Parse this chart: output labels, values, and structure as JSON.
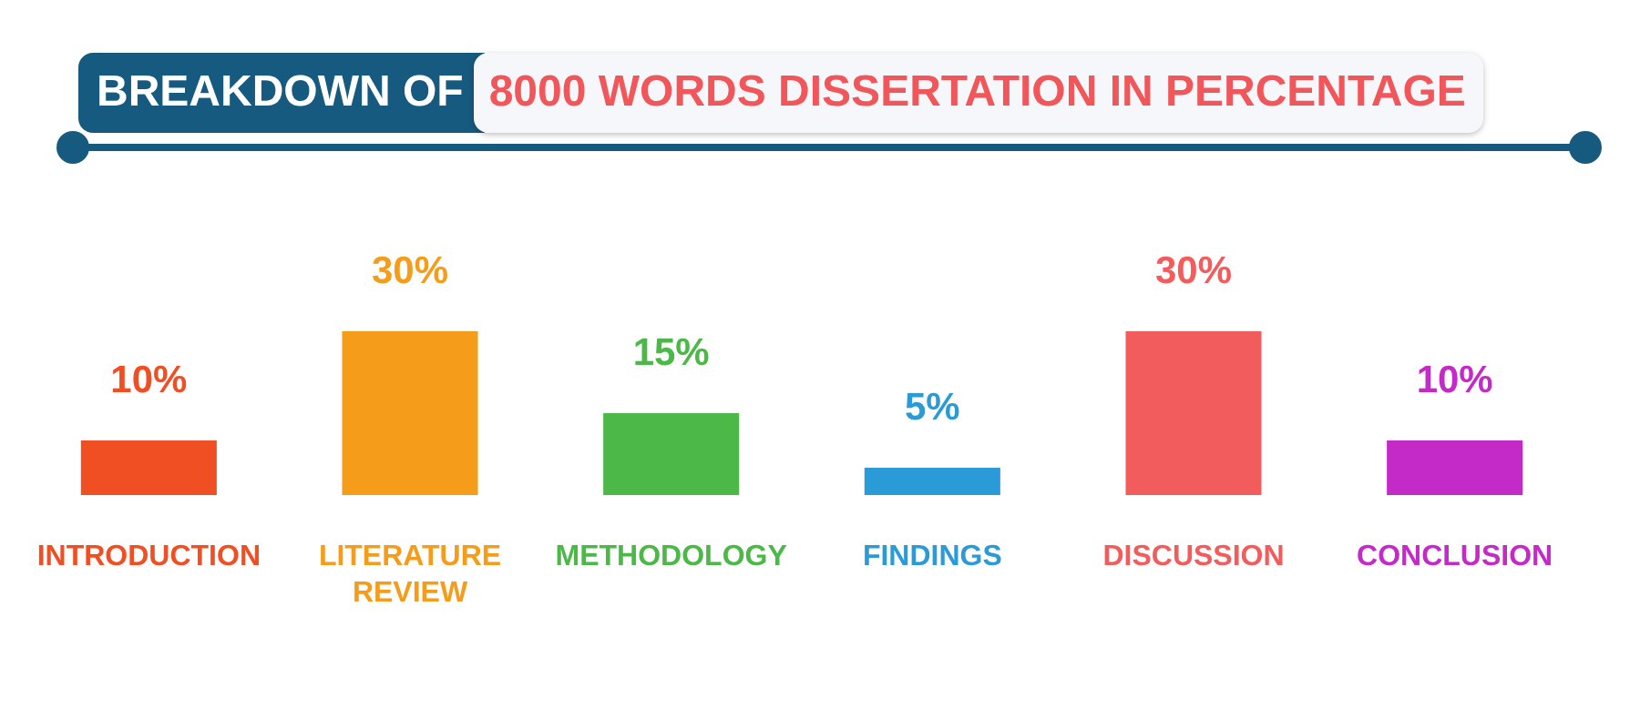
{
  "chart_data": {
    "type": "bar",
    "title": "BREAKDOWN OF 8000 WORDS DISSERTATION IN PERCENTAGE",
    "categories": [
      "INTRODUCTION",
      "LITERATURE REVIEW",
      "METHODOLOGY",
      "FINDINGS",
      "DISCUSSION",
      "CONCLUSION"
    ],
    "values": [
      10,
      30,
      15,
      5,
      30,
      10
    ],
    "colors": [
      "#f04e23",
      "#f59c1a",
      "#4cb848",
      "#2b9bd8",
      "#f25c5c",
      "#c42ac8"
    ],
    "value_labels": [
      "10%",
      "30%",
      "15%",
      "5%",
      "30%",
      "10%"
    ],
    "ylim": [
      0,
      30
    ],
    "tick_labels": "x"
  }
}
